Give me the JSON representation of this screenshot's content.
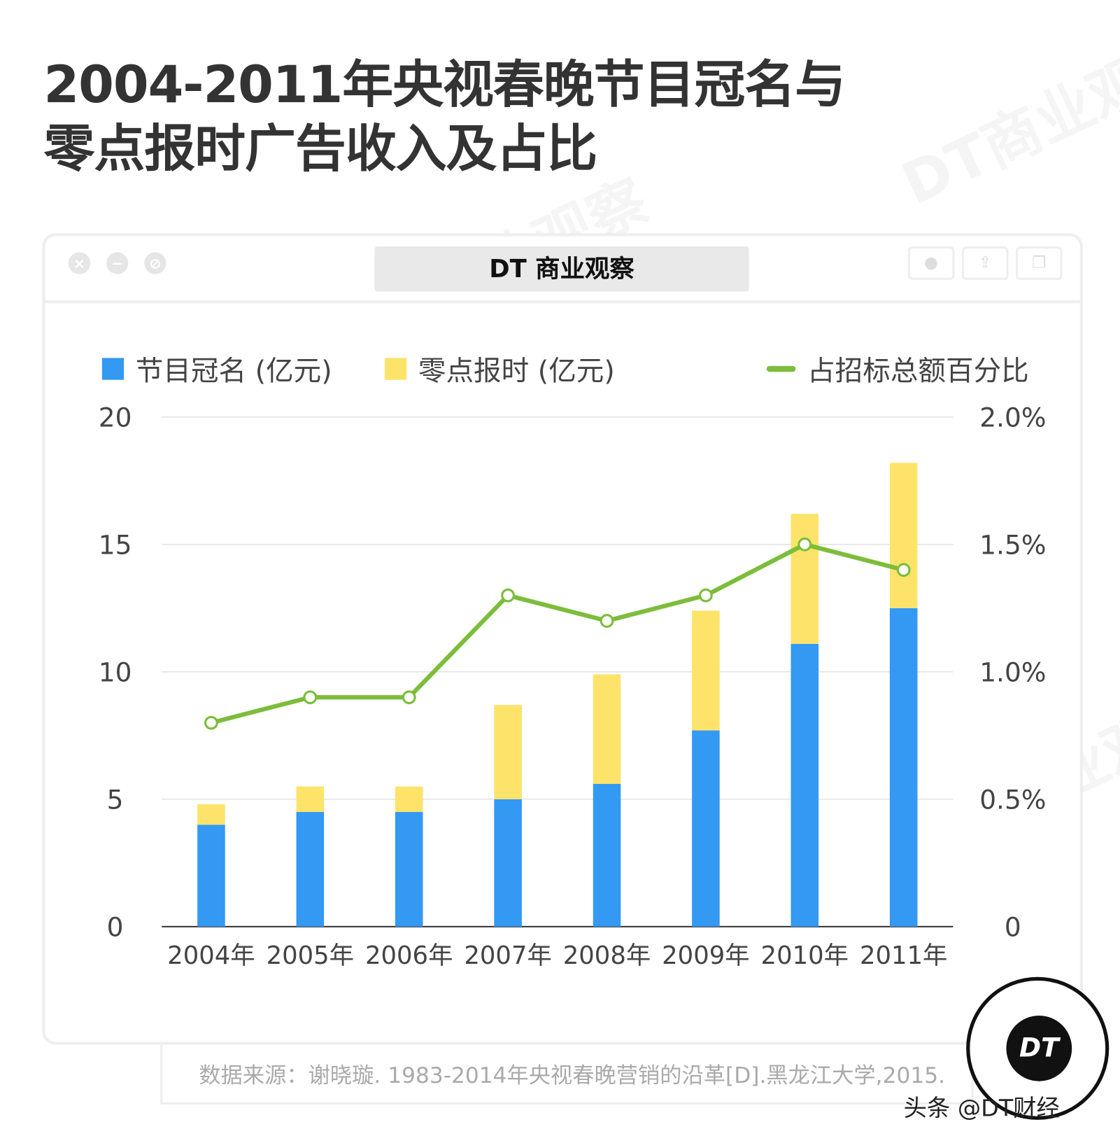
{
  "title_lines": [
    "2004-2011年央视春晚节目冠名与",
    "零点报时广告收入及占比"
  ],
  "brand": "DT 商业观察",
  "watermark": "DT商业观察",
  "window_icons": [
    "close-icon",
    "minimize-icon",
    "block-icon",
    "record-icon",
    "share-icon",
    "window-icon"
  ],
  "source": "数据来源：谢晓璇. 1983-2014年央视春晚营销的沿革[D].黑龙江大学,2015.",
  "badge": "DT",
  "credit": "头条 @DT财经",
  "chart_data": {
    "type": "bar",
    "stacked": true,
    "title": "2004-2011年央视春晚节目冠名与零点报时广告收入及占比",
    "categories": [
      "2004年",
      "2005年",
      "2006年",
      "2007年",
      "2008年",
      "2009年",
      "2010年",
      "2011年"
    ],
    "series": [
      {
        "name": "节目冠名 (亿元)",
        "type": "bar",
        "axis": "left",
        "color": "#3399f3",
        "values": [
          4.0,
          4.5,
          4.5,
          5.0,
          5.6,
          7.7,
          11.1,
          12.5
        ]
      },
      {
        "name": "零点报时 (亿元)",
        "type": "bar",
        "axis": "left",
        "color": "#fde36a",
        "values": [
          0.8,
          1.0,
          1.0,
          3.7,
          4.3,
          4.7,
          5.1,
          5.7
        ]
      },
      {
        "name": "占招标总额百分比",
        "type": "line",
        "axis": "right",
        "color": "#7cbd3b",
        "values": [
          0.8,
          0.9,
          0.9,
          1.3,
          1.2,
          1.3,
          1.5,
          1.4
        ]
      }
    ],
    "y_left": {
      "range": [
        0,
        20
      ],
      "ticks": [
        "0",
        "5",
        "10",
        "15",
        "20"
      ]
    },
    "y_right": {
      "range": [
        0,
        2.0
      ],
      "ticks": [
        "0",
        "0.5%",
        "1.0%",
        "1.5%",
        "2.0%"
      ]
    },
    "grid": true,
    "legend": "top"
  }
}
